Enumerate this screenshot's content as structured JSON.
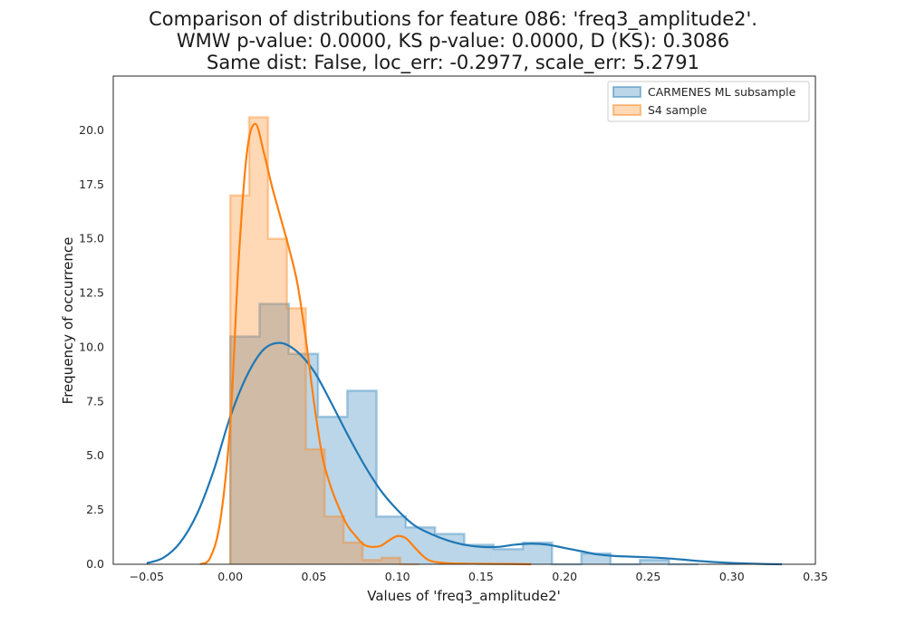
{
  "chart_data": {
    "type": "histogram+kde",
    "title_lines": [
      "Comparison of distributions for feature 086: 'freq3_amplitude2'.",
      "WMW p-value: 0.0000, KS p-value: 0.0000, D (KS): 0.3086",
      "Same dist: False, loc_err: -0.2977, scale_err: 5.2791"
    ],
    "xlabel": "Values of 'freq3_amplitude2'",
    "ylabel": "Frequency of occurrence",
    "xlim": [
      -0.07,
      0.35
    ],
    "ylim": [
      0,
      22.5
    ],
    "xticks": [
      -0.05,
      0.0,
      0.05,
      0.1,
      0.15,
      0.2,
      0.25,
      0.3,
      0.35
    ],
    "xtick_labels": [
      "−0.05",
      "0.00",
      "0.05",
      "0.10",
      "0.15",
      "0.20",
      "0.25",
      "0.30",
      "0.35"
    ],
    "yticks": [
      0,
      2.5,
      5,
      7.5,
      10,
      12.5,
      15,
      17.5,
      20
    ],
    "ytick_labels": [
      "0.0",
      "2.5",
      "5.0",
      "7.5",
      "10.0",
      "12.5",
      "15.0",
      "17.5",
      "20.0"
    ],
    "grid": false,
    "legend_position": "upper right",
    "series": [
      {
        "name": "CARMENES ML subsample",
        "color": "#1f77b4",
        "hist_edges": [
          0.0,
          0.0175,
          0.035,
          0.0525,
          0.07,
          0.0875,
          0.105,
          0.1225,
          0.14,
          0.1575,
          0.175,
          0.1925,
          0.21,
          0.2275,
          0.245,
          0.2625,
          0.28
        ],
        "hist_values": [
          10.5,
          12.0,
          9.7,
          6.8,
          8.0,
          2.2,
          1.7,
          1.4,
          0.9,
          0.7,
          1.0,
          0.0,
          0.5,
          0.0,
          0.2,
          0.0
        ],
        "kde_x": [
          -0.05,
          -0.04,
          -0.03,
          -0.02,
          -0.01,
          0.0,
          0.01,
          0.02,
          0.03,
          0.04,
          0.05,
          0.06,
          0.07,
          0.08,
          0.09,
          0.1,
          0.11,
          0.12,
          0.13,
          0.14,
          0.15,
          0.16,
          0.17,
          0.18,
          0.19,
          0.2,
          0.21,
          0.22,
          0.23,
          0.24,
          0.25,
          0.26,
          0.27,
          0.28,
          0.29,
          0.3,
          0.31,
          0.32,
          0.33
        ],
        "kde_y": [
          0.05,
          0.3,
          1.0,
          2.3,
          4.3,
          6.8,
          8.7,
          9.9,
          10.2,
          9.8,
          8.9,
          7.5,
          6.0,
          4.6,
          3.4,
          2.5,
          1.8,
          1.4,
          1.1,
          0.9,
          0.8,
          0.8,
          0.9,
          0.95,
          0.9,
          0.75,
          0.6,
          0.45,
          0.38,
          0.35,
          0.32,
          0.28,
          0.22,
          0.15,
          0.1,
          0.06,
          0.03,
          0.01,
          0.0
        ]
      },
      {
        "name": "S4 sample",
        "color": "#ff7f0e",
        "hist_edges": [
          0.0,
          0.0113,
          0.0226,
          0.0339,
          0.0452,
          0.0565,
          0.0678,
          0.0791,
          0.0904,
          0.1017,
          0.113
        ],
        "hist_values": [
          17.0,
          20.6,
          15.0,
          11.8,
          5.3,
          2.2,
          1.0,
          0.2,
          0.3,
          0.0
        ],
        "kde_x": [
          -0.018,
          -0.012,
          -0.006,
          0.0,
          0.005,
          0.01,
          0.015,
          0.02,
          0.025,
          0.03,
          0.035,
          0.04,
          0.045,
          0.05,
          0.055,
          0.06,
          0.065,
          0.07,
          0.075,
          0.08,
          0.085,
          0.09,
          0.095,
          0.1,
          0.105,
          0.11,
          0.115,
          0.12,
          0.13,
          0.15,
          0.17,
          0.18
        ],
        "kde_y": [
          0.0,
          0.3,
          2.0,
          6.5,
          14.0,
          19.0,
          20.3,
          19.0,
          17.4,
          16.0,
          14.6,
          13.0,
          10.5,
          7.5,
          5.0,
          3.6,
          2.6,
          1.8,
          1.3,
          0.9,
          0.8,
          0.85,
          1.1,
          1.3,
          1.2,
          0.8,
          0.4,
          0.15,
          0.05,
          0.02,
          0.01,
          0.0
        ]
      }
    ]
  }
}
